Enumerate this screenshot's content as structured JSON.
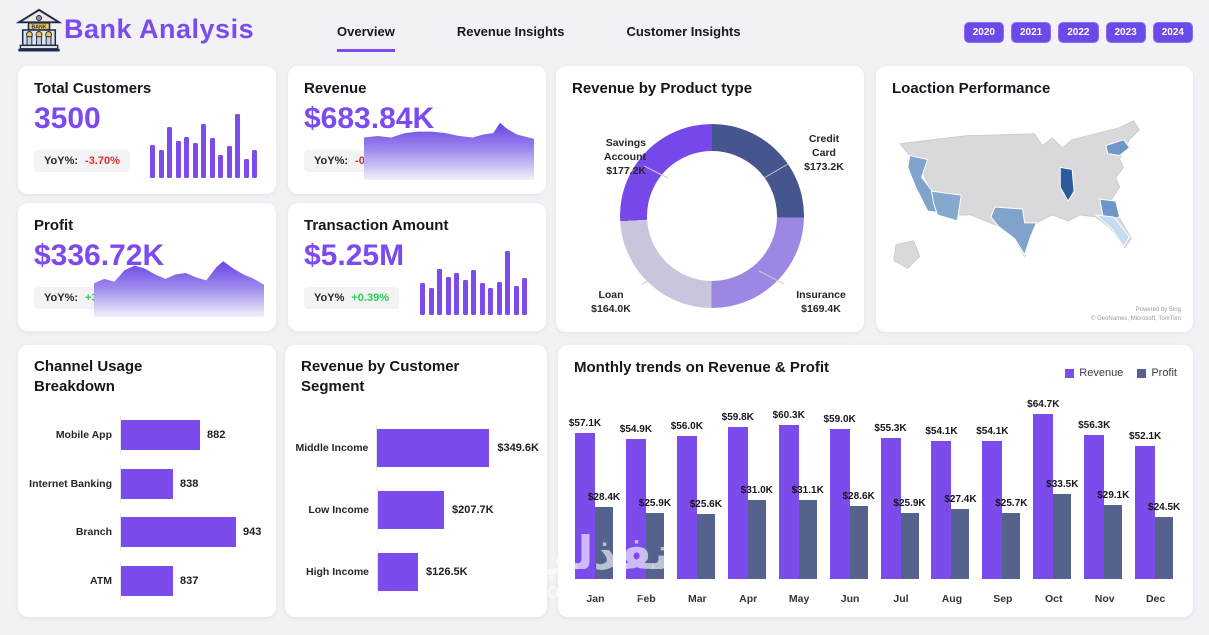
{
  "header": {
    "title": "Bank Analysis",
    "tabs": [
      {
        "label": "Overview",
        "active": true
      },
      {
        "label": "Revenue Insights",
        "active": false
      },
      {
        "label": "Customer Insights",
        "active": false
      }
    ],
    "years": [
      "2020",
      "2021",
      "2022",
      "2023",
      "2024"
    ]
  },
  "colors": {
    "accent_purple": "#7C4BEB",
    "kpi_value_purple": "#7C4AEE",
    "negative_red": "#E02B2B",
    "positive_green": "#27CE4F",
    "profit_bar": "#55628D"
  },
  "kpis": [
    {
      "id": "total-customers",
      "title": "Total Customers",
      "value": "3500",
      "yoy_label": "YoY%:",
      "yoy_value": "-3.70%",
      "yoy_color": "#E02B2B",
      "spark_type": "bars",
      "spark": [
        0.52,
        0.44,
        0.8,
        0.58,
        0.64,
        0.54,
        0.84,
        0.62,
        0.36,
        0.5,
        1.0,
        0.3,
        0.44
      ]
    },
    {
      "id": "revenue",
      "title": "Revenue",
      "value": "$683.84K",
      "yoy_label": "YoY%:",
      "yoy_value": "-0.03%",
      "yoy_color": "#E02B2B",
      "spark_type": "area",
      "spark_points": [
        [
          0,
          16
        ],
        [
          8,
          15
        ],
        [
          16,
          16
        ],
        [
          24,
          13
        ],
        [
          32,
          12
        ],
        [
          40,
          12
        ],
        [
          48,
          13
        ],
        [
          56,
          15
        ],
        [
          64,
          16
        ],
        [
          70,
          14
        ],
        [
          76,
          13
        ],
        [
          80,
          6
        ],
        [
          84,
          10
        ],
        [
          90,
          14
        ],
        [
          100,
          17
        ]
      ]
    },
    {
      "id": "profit",
      "title": "Profit",
      "value": "$336.72K",
      "yoy_label": "YoY%:",
      "yoy_value": "+3.79%",
      "yoy_color": "#27CE4F",
      "spark_type": "area",
      "spark_points": [
        [
          0,
          22
        ],
        [
          6,
          19
        ],
        [
          12,
          21
        ],
        [
          18,
          13
        ],
        [
          24,
          10
        ],
        [
          30,
          12
        ],
        [
          36,
          16
        ],
        [
          42,
          19
        ],
        [
          48,
          16
        ],
        [
          54,
          15
        ],
        [
          60,
          18
        ],
        [
          66,
          20
        ],
        [
          72,
          11
        ],
        [
          76,
          7
        ],
        [
          82,
          12
        ],
        [
          88,
          16
        ],
        [
          94,
          19
        ],
        [
          100,
          23
        ]
      ]
    },
    {
      "id": "transaction",
      "title": "Transaction Amount",
      "value": "$5.25M",
      "yoy_label": "YoY%",
      "yoy_value": "+0.39%",
      "yoy_color": "#27CE4F",
      "spark_type": "bars",
      "spark": [
        0.5,
        0.42,
        0.72,
        0.6,
        0.66,
        0.55,
        0.7,
        0.5,
        0.42,
        0.52,
        1.0,
        0.45,
        0.58
      ]
    }
  ],
  "chart_data": [
    {
      "id": "donut",
      "type": "pie",
      "title": "Revenue by Product type",
      "legend_position": "callout-labels",
      "slices": [
        {
          "label": "Credit Card",
          "label_lines": [
            "Credit",
            "Card"
          ],
          "value_k": 173.2,
          "value_label": "$173.2K",
          "pct": 25.3,
          "color": "#45568E"
        },
        {
          "label": "Insurance",
          "label_lines": [
            "Insurance"
          ],
          "value_k": 169.4,
          "value_label": "$169.4K",
          "pct": 24.8,
          "color": "#9C88E2"
        },
        {
          "label": "Loan",
          "label_lines": [
            "Loan"
          ],
          "value_k": 164.0,
          "value_label": "$164.0K",
          "pct": 24.0,
          "color": "#CAC5DD"
        },
        {
          "label": "Savings Account",
          "label_lines": [
            "Savings",
            "Account"
          ],
          "value_k": 177.2,
          "value_label": "$177.2K",
          "pct": 25.9,
          "color": "#7648EA"
        }
      ]
    },
    {
      "id": "channel",
      "type": "bar",
      "orientation": "horizontal",
      "title": "Channel Usage Breakdown",
      "title_lines": [
        "Channel Usage",
        "Breakdown"
      ],
      "categories": [
        "Mobile App",
        "Internet Banking",
        "Branch",
        "ATM"
      ],
      "values": [
        882,
        838,
        943,
        837
      ],
      "xlim": [
        750,
        960
      ],
      "grid": false
    },
    {
      "id": "segment",
      "type": "bar",
      "orientation": "horizontal",
      "title": "Revenue by Customer Segment",
      "title_lines": [
        "Revenue by Customer",
        "Segment"
      ],
      "categories": [
        "Middle Income",
        "Low Income",
        "High Income"
      ],
      "values_k": [
        349.6,
        207.7,
        126.5
      ],
      "value_labels": [
        "$349.6K",
        "$207.7K",
        "$126.5K"
      ],
      "xlim": [
        0,
        380
      ],
      "grid": false
    },
    {
      "id": "monthly",
      "type": "bar",
      "title": "Monthly trends on Revenue & Profit",
      "legend": [
        "Revenue",
        "Profit"
      ],
      "legend_position": "top-right",
      "categories": [
        "Jan",
        "Feb",
        "Mar",
        "Apr",
        "May",
        "Jun",
        "Jul",
        "Aug",
        "Sep",
        "Oct",
        "Nov",
        "Dec"
      ],
      "series": [
        {
          "name": "Revenue",
          "color": "#7C4BEB",
          "values_k": [
            57.1,
            54.9,
            56.0,
            59.8,
            60.3,
            59.0,
            55.3,
            54.1,
            54.1,
            64.7,
            56.3,
            52.1
          ],
          "labels": [
            "$57.1K",
            "$54.9K",
            "$56.0K",
            "$59.8K",
            "$60.3K",
            "$59.0K",
            "$55.3K",
            "$54.1K",
            "$54.1K",
            "$64.7K",
            "$56.3K",
            "$52.1K"
          ]
        },
        {
          "name": "Profit",
          "color": "#55628D",
          "values_k": [
            28.4,
            25.9,
            25.6,
            31.0,
            31.1,
            28.6,
            25.9,
            27.4,
            25.7,
            33.5,
            29.1,
            24.5
          ],
          "labels": [
            "$28.4K",
            "$25.9K",
            "$25.6K",
            "$31.0K",
            "$31.1K",
            "$28.6K",
            "$25.9K",
            "$27.4K",
            "$25.7K",
            "$33.5K",
            "$29.1K",
            "$24.5K"
          ]
        }
      ],
      "ylim": [
        0,
        70
      ],
      "grid": false
    },
    {
      "id": "map",
      "type": "map",
      "title": "Loaction Performance",
      "attribution": [
        "Powered by Bing",
        "© GeoNames, Microsoft, TomTom"
      ],
      "base_color": "#D9D9DC",
      "states": [
        {
          "id": "california",
          "name": "California",
          "color": "#7FA3CB"
        },
        {
          "id": "arizona",
          "name": "Arizona",
          "color": "#85A8CE"
        },
        {
          "id": "texas",
          "name": "Texas",
          "color": "#7FA3CB"
        },
        {
          "id": "illinois",
          "name": "Illinois",
          "color": "#2E5A9E"
        },
        {
          "id": "georgia",
          "name": "Georgia",
          "color": "#6E96C6"
        },
        {
          "id": "new-york",
          "name": "New York",
          "color": "#6E96C6"
        },
        {
          "id": "florida",
          "name": "Florida",
          "color": "#C7DCEF"
        }
      ]
    }
  ],
  "watermark": {
    "line1": "نفذلي",
    "line2": "nofezly.com"
  }
}
